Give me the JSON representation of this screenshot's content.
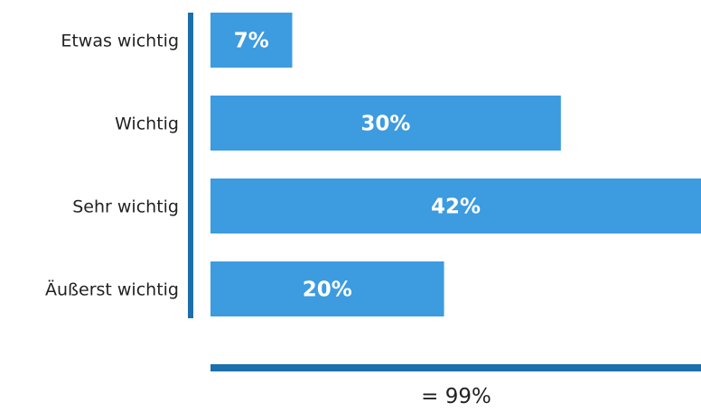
{
  "chart_data": {
    "type": "bar",
    "orientation": "horizontal",
    "categories": [
      "Etwas wichtig",
      "Wichtig",
      "Sehr wichtig",
      "Äußerst wichtig"
    ],
    "values": [
      7,
      30,
      42,
      20
    ],
    "value_labels": [
      "7%",
      "30%",
      "42%",
      "20%"
    ],
    "total_label": "= 99%",
    "xlim": [
      0,
      42
    ],
    "title": "",
    "xlabel": "",
    "ylabel": "",
    "grid": false,
    "legend": false
  },
  "colors": {
    "bar": "#3d9be0",
    "axis": "#1c6fad",
    "text": "#222222",
    "value_text": "#ffffff"
  }
}
